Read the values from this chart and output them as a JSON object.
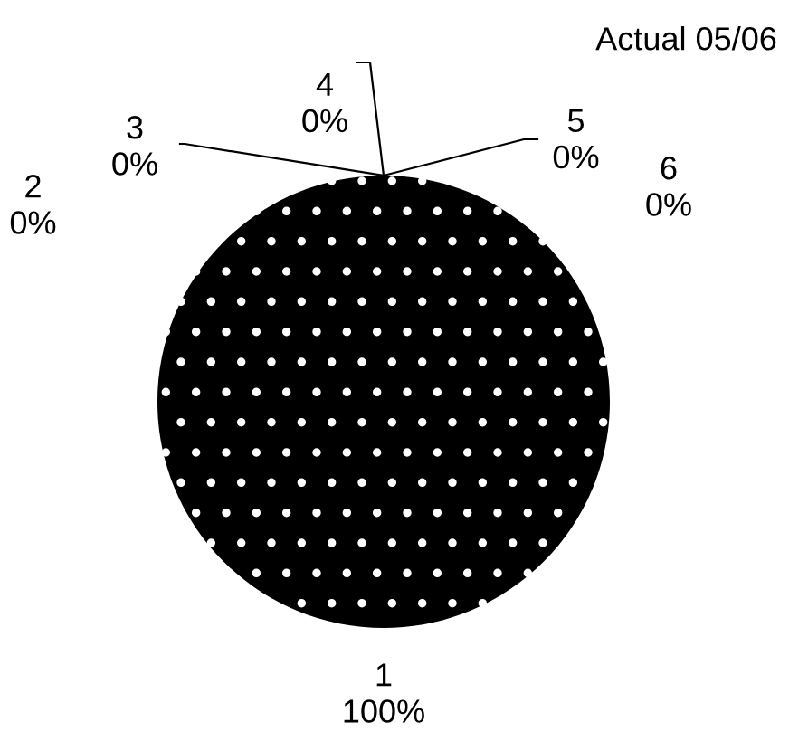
{
  "chart_data": {
    "type": "pie",
    "title": "Actual 05/06",
    "categories": [
      "1",
      "2",
      "3",
      "4",
      "5",
      "6"
    ],
    "values": [
      100,
      0,
      0,
      0,
      0,
      0
    ],
    "colors": [
      "#000000",
      "#000000",
      "#000000",
      "#000000",
      "#000000",
      "#000000"
    ],
    "value_labels": [
      "100%",
      "0%",
      "0%",
      "0%",
      "0%",
      "0%"
    ],
    "legend": false
  }
}
